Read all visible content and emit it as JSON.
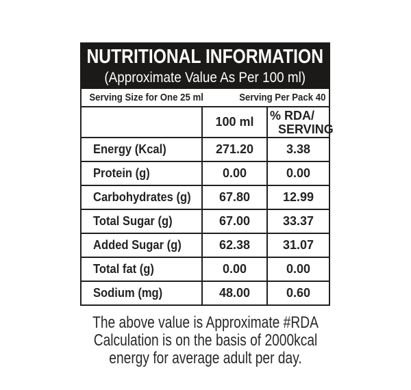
{
  "header": {
    "title": "NUTRITIONAL INFORMATION",
    "subtitle": "(Approximate Value As Per 100 ml)"
  },
  "serving": {
    "size_label": "Serving Size for One 25 ml",
    "pack_label": "Serving Per Pack 40"
  },
  "columns": {
    "per_quantity": "100 ml",
    "rda_line1": "% RDA/",
    "rda_line2": "SERVING"
  },
  "rows": [
    {
      "label": "Energy (Kcal)",
      "per_100ml": "271.20",
      "rda_serving": "3.38"
    },
    {
      "label": "Protein (g)",
      "per_100ml": "0.00",
      "rda_serving": "0.00"
    },
    {
      "label": "Carbohydrates (g)",
      "per_100ml": "67.80",
      "rda_serving": "12.99"
    },
    {
      "label": "Total Sugar (g)",
      "per_100ml": "67.00",
      "rda_serving": "33.37"
    },
    {
      "label": "Added Sugar (g)",
      "per_100ml": "62.38",
      "rda_serving": "31.07"
    },
    {
      "label": "Total fat (g)",
      "per_100ml": "0.00",
      "rda_serving": "0.00"
    },
    {
      "label": "Sodium (mg)",
      "per_100ml": "48.00",
      "rda_serving": "0.60"
    }
  ],
  "footer": {
    "line1": "The above value is Approximate #RDA",
    "line2": "Calculation is on the basis of 2000kcal",
    "line3": "energy for average adult per day."
  },
  "colors": {
    "header_bg": "#1c1a19",
    "border": "#211f1e",
    "text": "#242221",
    "background": "#ffffff"
  }
}
